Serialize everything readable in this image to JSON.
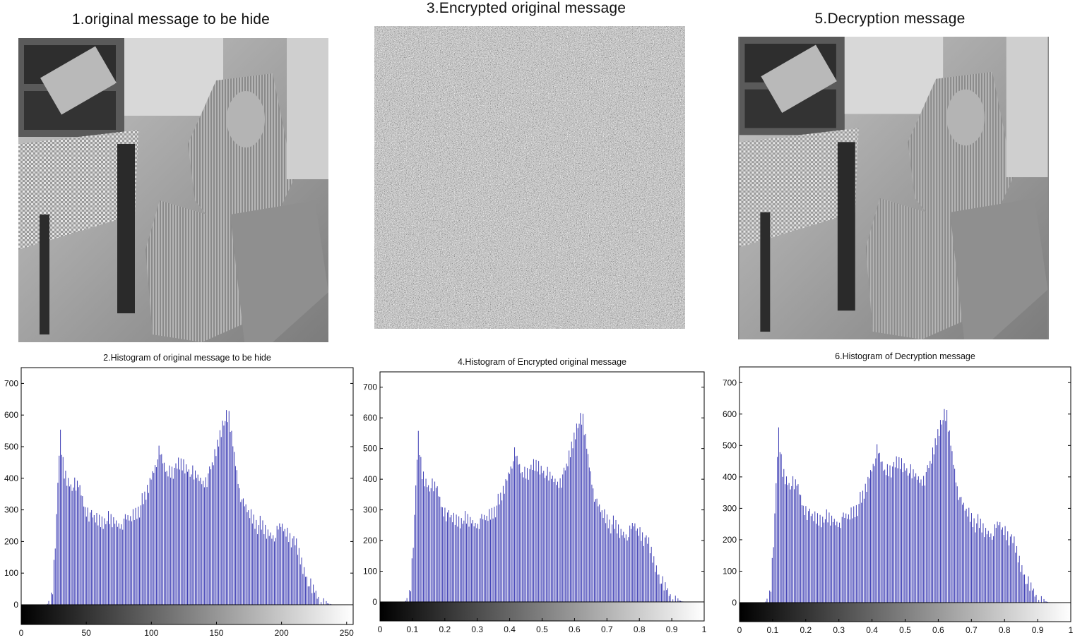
{
  "panels": [
    {
      "title": "1.original message to be hide"
    },
    {
      "title": "3.Encrypted original message"
    },
    {
      "title": "5.Decryption message"
    }
  ],
  "colors": {
    "bar": "#3c3cb4",
    "bar_edge": "#1a1a6e",
    "axis": "#000000"
  },
  "chart_data": [
    {
      "type": "bar",
      "title": "2.Histogram of original message to be hide",
      "xlim": [
        0,
        255
      ],
      "ylim": [
        0,
        750
      ],
      "xticks": [
        0,
        50,
        100,
        150,
        200,
        250
      ],
      "xtick_labels": [
        "0",
        "50",
        "100",
        "150",
        "200",
        "250"
      ],
      "yticks": [
        0,
        100,
        200,
        300,
        400,
        500,
        600,
        700
      ],
      "colorbar": "grayscale",
      "profile": [
        [
          0,
          0
        ],
        [
          20,
          0
        ],
        [
          24,
          25
        ],
        [
          28,
          330
        ],
        [
          30,
          540
        ],
        [
          33,
          420
        ],
        [
          38,
          380
        ],
        [
          45,
          370
        ],
        [
          50,
          300
        ],
        [
          58,
          265
        ],
        [
          65,
          270
        ],
        [
          75,
          255
        ],
        [
          85,
          275
        ],
        [
          95,
          330
        ],
        [
          102,
          430
        ],
        [
          106,
          480
        ],
        [
          112,
          420
        ],
        [
          118,
          430
        ],
        [
          125,
          445
        ],
        [
          135,
          400
        ],
        [
          142,
          390
        ],
        [
          148,
          450
        ],
        [
          155,
          580
        ],
        [
          160,
          590
        ],
        [
          164,
          470
        ],
        [
          170,
          320
        ],
        [
          176,
          285
        ],
        [
          182,
          255
        ],
        [
          190,
          225
        ],
        [
          196,
          220
        ],
        [
          200,
          250
        ],
        [
          204,
          230
        ],
        [
          210,
          200
        ],
        [
          216,
          130
        ],
        [
          222,
          60
        ],
        [
          230,
          10
        ],
        [
          240,
          0
        ],
        [
          255,
          0
        ]
      ]
    },
    {
      "type": "bar",
      "title": "4.Histogram of Encrypted original message",
      "xlim": [
        0,
        1
      ],
      "ylim": [
        0,
        750
      ],
      "xticks": [
        0,
        0.1,
        0.2,
        0.3,
        0.4,
        0.5,
        0.6,
        0.7,
        0.8,
        0.9,
        1
      ],
      "xtick_labels": [
        "0",
        "0.1",
        "0.2",
        "0.3",
        "0.4",
        "0.5",
        "0.6",
        "0.7",
        "0.8",
        "0.9",
        "1"
      ],
      "yticks": [
        0,
        100,
        200,
        300,
        400,
        500,
        600,
        700
      ],
      "colorbar": "grayscale",
      "profile": [
        [
          0,
          0
        ],
        [
          0.078,
          0
        ],
        [
          0.094,
          25
        ],
        [
          0.11,
          330
        ],
        [
          0.118,
          540
        ],
        [
          0.13,
          420
        ],
        [
          0.149,
          380
        ],
        [
          0.176,
          370
        ],
        [
          0.196,
          300
        ],
        [
          0.227,
          265
        ],
        [
          0.255,
          270
        ],
        [
          0.294,
          255
        ],
        [
          0.333,
          275
        ],
        [
          0.373,
          330
        ],
        [
          0.4,
          430
        ],
        [
          0.416,
          480
        ],
        [
          0.439,
          420
        ],
        [
          0.463,
          430
        ],
        [
          0.49,
          445
        ],
        [
          0.529,
          400
        ],
        [
          0.557,
          390
        ],
        [
          0.58,
          450
        ],
        [
          0.608,
          580
        ],
        [
          0.627,
          590
        ],
        [
          0.643,
          470
        ],
        [
          0.667,
          320
        ],
        [
          0.69,
          285
        ],
        [
          0.714,
          255
        ],
        [
          0.745,
          225
        ],
        [
          0.769,
          220
        ],
        [
          0.784,
          250
        ],
        [
          0.8,
          230
        ],
        [
          0.824,
          200
        ],
        [
          0.847,
          130
        ],
        [
          0.871,
          60
        ],
        [
          0.902,
          10
        ],
        [
          0.941,
          0
        ],
        [
          1,
          0
        ]
      ]
    },
    {
      "type": "bar",
      "title": "6.Histogram of Decryption message",
      "xlim": [
        0,
        1
      ],
      "ylim": [
        0,
        750
      ],
      "xticks": [
        0,
        0.1,
        0.2,
        0.3,
        0.4,
        0.5,
        0.6,
        0.7,
        0.8,
        0.9,
        1
      ],
      "xtick_labels": [
        "0",
        "0.1",
        "0.2",
        "0.3",
        "0.4",
        "0.5",
        "0.6",
        "0.7",
        "0.8",
        "0.9",
        "1"
      ],
      "yticks": [
        0,
        100,
        200,
        300,
        400,
        500,
        600,
        700
      ],
      "colorbar": "grayscale",
      "profile": [
        [
          0,
          0
        ],
        [
          0.078,
          0
        ],
        [
          0.094,
          25
        ],
        [
          0.11,
          330
        ],
        [
          0.118,
          540
        ],
        [
          0.13,
          420
        ],
        [
          0.149,
          380
        ],
        [
          0.176,
          370
        ],
        [
          0.196,
          300
        ],
        [
          0.227,
          265
        ],
        [
          0.255,
          270
        ],
        [
          0.294,
          255
        ],
        [
          0.333,
          275
        ],
        [
          0.373,
          330
        ],
        [
          0.4,
          430
        ],
        [
          0.416,
          480
        ],
        [
          0.439,
          420
        ],
        [
          0.463,
          430
        ],
        [
          0.49,
          445
        ],
        [
          0.529,
          400
        ],
        [
          0.557,
          390
        ],
        [
          0.58,
          450
        ],
        [
          0.608,
          580
        ],
        [
          0.627,
          590
        ],
        [
          0.643,
          470
        ],
        [
          0.667,
          320
        ],
        [
          0.69,
          285
        ],
        [
          0.714,
          255
        ],
        [
          0.745,
          225
        ],
        [
          0.769,
          220
        ],
        [
          0.784,
          250
        ],
        [
          0.8,
          230
        ],
        [
          0.824,
          200
        ],
        [
          0.847,
          130
        ],
        [
          0.871,
          60
        ],
        [
          0.902,
          10
        ],
        [
          0.941,
          0
        ],
        [
          1,
          0
        ]
      ]
    }
  ]
}
